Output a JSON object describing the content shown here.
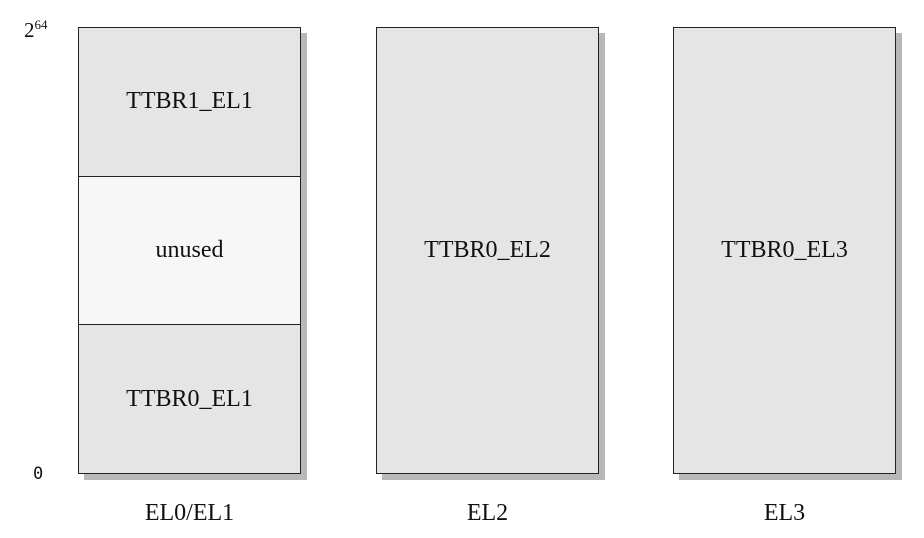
{
  "axis": {
    "top_base": "2",
    "top_exponent": "64",
    "bottom": "0"
  },
  "columns": [
    {
      "caption": "EL0/EL1",
      "regions": [
        {
          "label": "TTBR1_EL1"
        },
        {
          "label": "unused"
        },
        {
          "label": "TTBR0_EL1"
        }
      ]
    },
    {
      "caption": "EL2",
      "regions": [
        {
          "label": "TTBR0_EL2"
        }
      ]
    },
    {
      "caption": "EL3",
      "regions": [
        {
          "label": "TTBR0_EL3"
        }
      ]
    }
  ],
  "colors": {
    "region_fill": "#e5e5e5",
    "unused_fill": "#f7f7f7",
    "shadow": "#b8b8b8",
    "border": "#222222"
  }
}
